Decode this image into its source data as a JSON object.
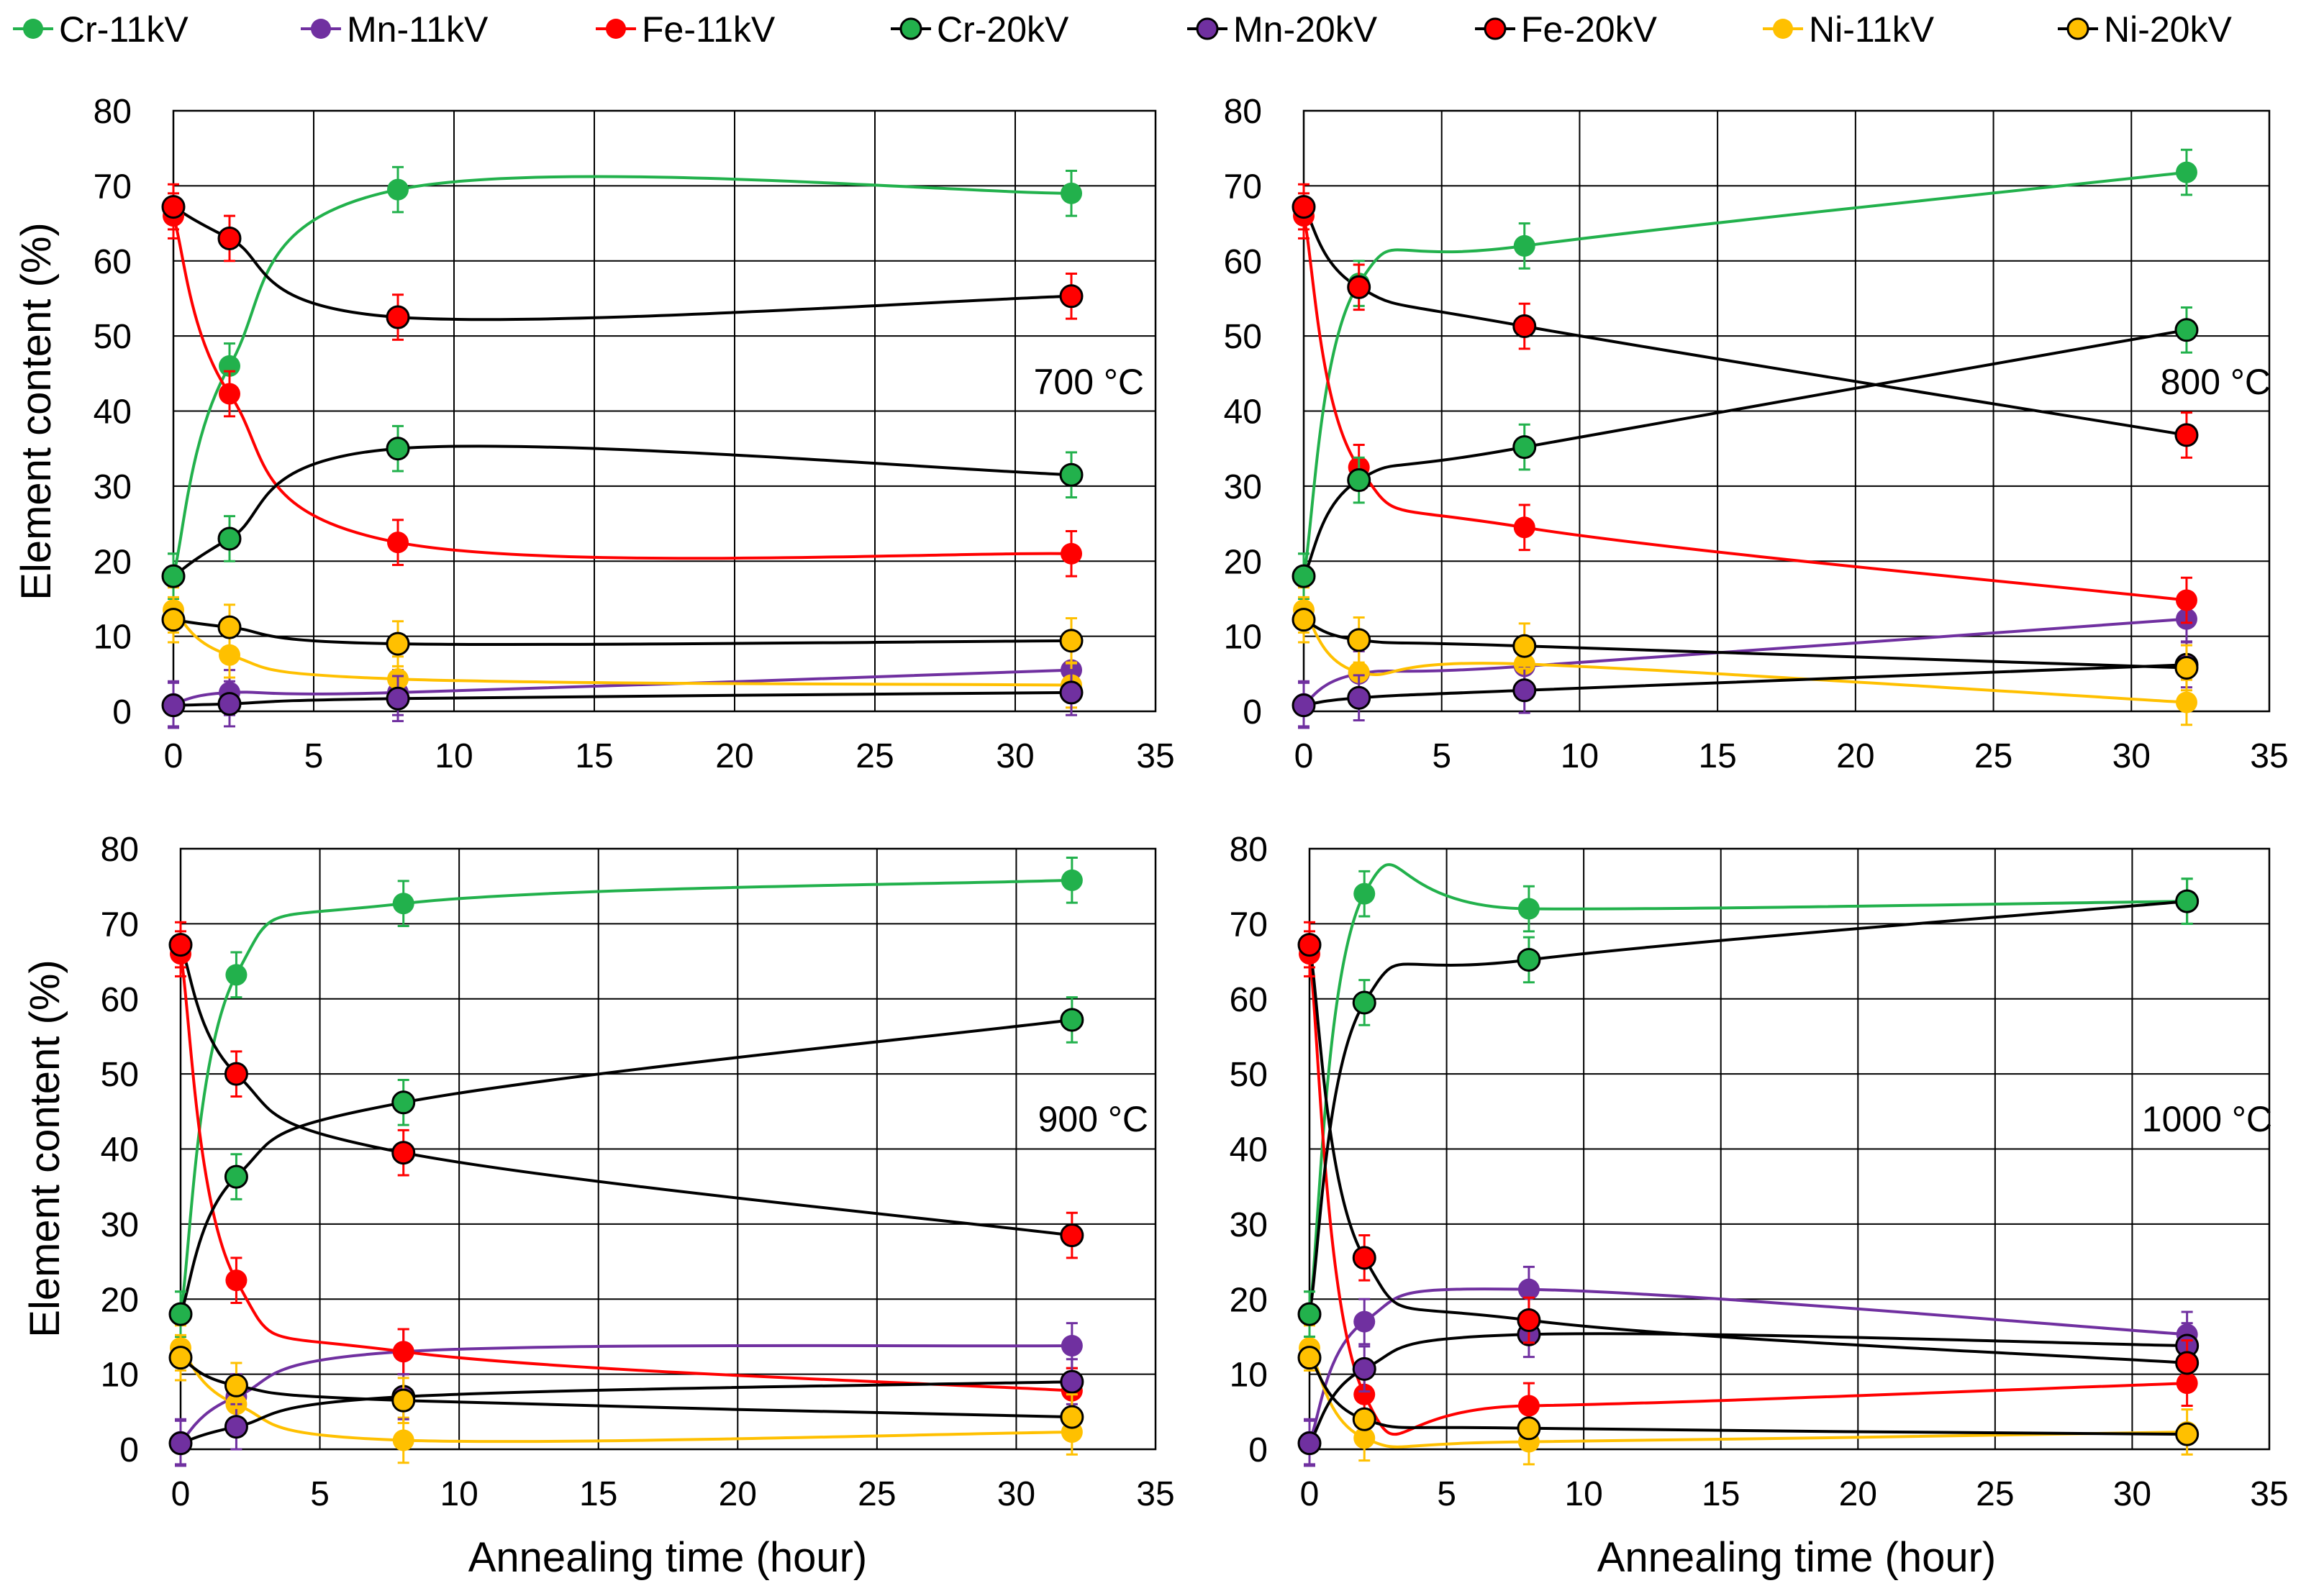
{
  "legend": [
    {
      "label": "Cr-11kV",
      "color": "#22b14c",
      "outline": "none",
      "element": "Cr",
      "voltage": "11kV"
    },
    {
      "label": "Mn-11kV",
      "color": "#7030a0",
      "outline": "none",
      "element": "Mn",
      "voltage": "11kV"
    },
    {
      "label": "Fe-11kV",
      "color": "#ff0000",
      "outline": "none",
      "element": "Fe",
      "voltage": "11kV"
    },
    {
      "label": "Cr-20kV",
      "color": "#22b14c",
      "outline": "#000000",
      "element": "Cr",
      "voltage": "20kV"
    },
    {
      "label": "Mn-20kV",
      "color": "#7030a0",
      "outline": "#000000",
      "element": "Mn",
      "voltage": "20kV"
    },
    {
      "label": "Fe-20kV",
      "color": "#ff0000",
      "outline": "#000000",
      "element": "Fe",
      "voltage": "20kV"
    },
    {
      "label": "Ni-11kV",
      "color": "#ffc000",
      "outline": "none",
      "element": "Ni",
      "voltage": "11kV"
    },
    {
      "label": "Ni-20kV",
      "color": "#ffc000",
      "outline": "#000000",
      "element": "Ni",
      "voltage": "20kV"
    }
  ],
  "colors": {
    "Cr": "#22b14c",
    "Mn": "#7030a0",
    "Fe": "#ff0000",
    "Ni": "#ffc000",
    "line20kV": "#000000"
  },
  "chart_data": [
    {
      "type": "line",
      "id": "panel-700",
      "annotation": "700 °C",
      "xlabel": "",
      "ylabel": "Element content (%)",
      "xlim": [
        0,
        35
      ],
      "ylim": [
        0,
        80
      ],
      "xticks": [
        "0",
        "5",
        "10",
        "15",
        "20",
        "25",
        "30",
        "35"
      ],
      "yticks": [
        "0",
        "10",
        "20",
        "30",
        "40",
        "50",
        "60",
        "70",
        "80"
      ],
      "x": [
        0,
        2,
        8,
        32
      ],
      "series": [
        {
          "name": "Cr-11kV",
          "values": [
            18,
            46,
            69.5,
            69
          ],
          "error": 3
        },
        {
          "name": "Mn-11kV",
          "values": [
            1,
            2.5,
            2.5,
            5.5
          ],
          "error": 3
        },
        {
          "name": "Fe-11kV",
          "values": [
            66,
            42.3,
            22.5,
            21
          ],
          "error": 3
        },
        {
          "name": "Ni-11kV",
          "values": [
            13.5,
            7.5,
            4.3,
            3.5
          ],
          "error": 3
        },
        {
          "name": "Cr-20kV",
          "values": [
            18,
            23,
            35,
            31.5
          ],
          "error": 3
        },
        {
          "name": "Mn-20kV",
          "values": [
            0.8,
            1,
            1.7,
            2.5
          ],
          "error": 3
        },
        {
          "name": "Fe-20kV",
          "values": [
            67.2,
            63,
            52.5,
            55.3
          ],
          "error": 3
        },
        {
          "name": "Ni-20kV",
          "values": [
            12.2,
            11.2,
            9,
            9.4
          ],
          "error": 3
        }
      ]
    },
    {
      "type": "line",
      "id": "panel-800",
      "annotation": "800 °C",
      "xlabel": "",
      "ylabel": "",
      "xlim": [
        0,
        35
      ],
      "ylim": [
        0,
        80
      ],
      "xticks": [
        "0",
        "5",
        "10",
        "15",
        "20",
        "25",
        "30",
        "35"
      ],
      "yticks": [
        "0",
        "10",
        "20",
        "30",
        "40",
        "50",
        "60",
        "70",
        "80"
      ],
      "x": [
        0,
        2,
        8,
        32
      ],
      "series": [
        {
          "name": "Cr-11kV",
          "values": [
            18,
            57,
            62,
            71.8
          ],
          "error": 3
        },
        {
          "name": "Mn-11kV",
          "values": [
            1,
            5,
            6,
            12.3
          ],
          "error": 3
        },
        {
          "name": "Fe-11kV",
          "values": [
            66,
            32.5,
            24.5,
            14.8
          ],
          "error": 3
        },
        {
          "name": "Ni-11kV",
          "values": [
            13.5,
            5.2,
            6.3,
            1.2
          ],
          "error": 3
        },
        {
          "name": "Cr-20kV",
          "values": [
            18,
            30.8,
            35.2,
            50.8
          ],
          "error": 3
        },
        {
          "name": "Mn-20kV",
          "values": [
            0.8,
            1.8,
            2.8,
            6.2
          ],
          "error": 3
        },
        {
          "name": "Fe-20kV",
          "values": [
            67.2,
            56.5,
            51.3,
            36.8
          ],
          "error": 3
        },
        {
          "name": "Ni-20kV",
          "values": [
            12.2,
            9.5,
            8.7,
            5.8
          ],
          "error": 3
        }
      ]
    },
    {
      "type": "line",
      "id": "panel-900",
      "annotation": "900 °C",
      "xlabel": "Annealing time (hour)",
      "ylabel": "Element content  (%)",
      "xlim": [
        0,
        35
      ],
      "ylim": [
        0,
        80
      ],
      "xticks": [
        "0",
        "5",
        "10",
        "15",
        "20",
        "25",
        "30",
        "35"
      ],
      "yticks": [
        "0",
        "10",
        "20",
        "30",
        "40",
        "50",
        "60",
        "70",
        "80"
      ],
      "x": [
        0,
        2,
        8,
        32
      ],
      "series": [
        {
          "name": "Cr-11kV",
          "values": [
            18,
            63.2,
            72.7,
            75.8
          ],
          "error": 3
        },
        {
          "name": "Mn-11kV",
          "values": [
            1,
            7,
            13,
            13.8
          ],
          "error": 3
        },
        {
          "name": "Fe-11kV",
          "values": [
            66,
            22.5,
            13,
            7.8
          ],
          "error": 3
        },
        {
          "name": "Ni-11kV",
          "values": [
            13.5,
            6,
            1.2,
            2.3
          ],
          "error": 3
        },
        {
          "name": "Cr-20kV",
          "values": [
            18,
            36.3,
            46.2,
            57.2
          ],
          "error": 3
        },
        {
          "name": "Mn-20kV",
          "values": [
            0.8,
            3,
            7,
            9
          ],
          "error": 3
        },
        {
          "name": "Fe-20kV",
          "values": [
            67.2,
            50,
            39.5,
            28.5
          ],
          "error": 3
        },
        {
          "name": "Ni-20kV",
          "values": [
            12.2,
            8.5,
            6.5,
            4.3
          ],
          "error": 3
        }
      ]
    },
    {
      "type": "line",
      "id": "panel-1000",
      "annotation": "1000 °C",
      "xlabel": "Annealing time (hour)",
      "ylabel": "",
      "xlim": [
        0,
        35
      ],
      "ylim": [
        0,
        80
      ],
      "xticks": [
        "0",
        "5",
        "10",
        "15",
        "20",
        "25",
        "30",
        "35"
      ],
      "yticks": [
        "0",
        "10",
        "20",
        "30",
        "40",
        "50",
        "60",
        "70",
        "80"
      ],
      "x": [
        0,
        2,
        8,
        32
      ],
      "series": [
        {
          "name": "Cr-11kV",
          "values": [
            18,
            74,
            72,
            73
          ],
          "error": 3
        },
        {
          "name": "Mn-11kV",
          "values": [
            1,
            17,
            21.3,
            15.3
          ],
          "error": 3
        },
        {
          "name": "Fe-11kV",
          "values": [
            66,
            7.3,
            5.8,
            8.8
          ],
          "error": 3
        },
        {
          "name": "Ni-11kV",
          "values": [
            13.5,
            1.5,
            1,
            2.3
          ],
          "error": 3
        },
        {
          "name": "Cr-20kV",
          "values": [
            18,
            59.5,
            65.2,
            73
          ],
          "error": 3
        },
        {
          "name": "Mn-20kV",
          "values": [
            0.8,
            10.7,
            15.3,
            13.8
          ],
          "error": 3
        },
        {
          "name": "Fe-20kV",
          "values": [
            67.2,
            25.5,
            17.2,
            11.5
          ],
          "error": 3
        },
        {
          "name": "Ni-20kV",
          "values": [
            12.2,
            4,
            2.8,
            2
          ]
        }
      ]
    }
  ]
}
